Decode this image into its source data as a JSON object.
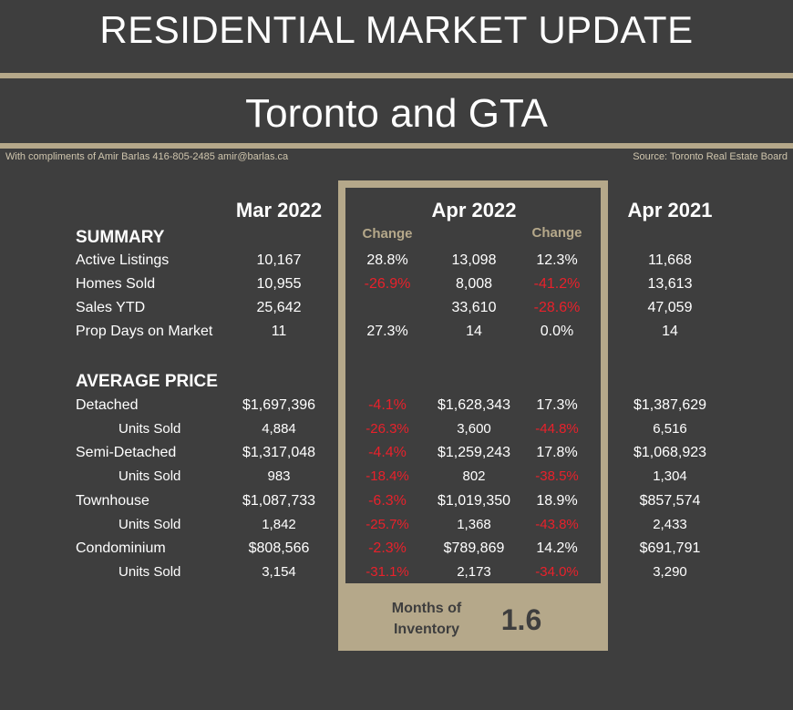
{
  "header": {
    "title": "RESIDENTIAL MARKET UPDATE",
    "subtitle": "Toronto and GTA",
    "credit": "With compliments of Amir Barlas 416-805-2485 amir@barlas.ca",
    "source": "Source: Toronto Real Estate Board"
  },
  "columns": {
    "mar2022": "Mar 2022",
    "apr2022": "Apr 2022",
    "apr2021": "Apr 2021",
    "change": "Change"
  },
  "sections": {
    "summary": "SUMMARY",
    "average_price": "AVERAGE PRICE"
  },
  "colors": {
    "background": "#3e3e3e",
    "accent": "#b5a88a",
    "negative": "#e8212b"
  },
  "summary_rows": [
    {
      "label": "Active Listings",
      "mar2022": "10,167",
      "change_mar": "28.8%",
      "apr2022": "13,098",
      "change_yoy": "12.3%",
      "apr2021": "11,668",
      "neg_mar": false,
      "neg_yoy": false
    },
    {
      "label": "Homes Sold",
      "mar2022": "10,955",
      "change_mar": "-26.9%",
      "apr2022": "8,008",
      "change_yoy": "-41.2%",
      "apr2021": "13,613",
      "neg_mar": true,
      "neg_yoy": true
    },
    {
      "label": "Sales YTD",
      "mar2022": "25,642",
      "change_mar": "",
      "apr2022": "33,610",
      "change_yoy": "-28.6%",
      "apr2021": "47,059",
      "neg_mar": false,
      "neg_yoy": true
    },
    {
      "label": "Prop Days on Market",
      "mar2022": "11",
      "change_mar": "27.3%",
      "apr2022": "14",
      "change_yoy": "0.0%",
      "apr2021": "14",
      "neg_mar": false,
      "neg_yoy": false
    }
  ],
  "price_rows": [
    {
      "label": "Detached",
      "mar2022": "$1,697,396",
      "change_mar": "-4.1%",
      "apr2022": "$1,628,343",
      "change_yoy": "17.3%",
      "apr2021": "$1,387,629",
      "neg_mar": true,
      "neg_yoy": false
    },
    {
      "label": "Units Sold",
      "mar2022": "4,884",
      "change_mar": "-26.3%",
      "apr2022": "3,600",
      "change_yoy": "-44.8%",
      "apr2021": "6,516",
      "neg_mar": true,
      "neg_yoy": true
    },
    {
      "label": "Semi-Detached",
      "mar2022": "$1,317,048",
      "change_mar": "-4.4%",
      "apr2022": "$1,259,243",
      "change_yoy": "17.8%",
      "apr2021": "$1,068,923",
      "neg_mar": true,
      "neg_yoy": false
    },
    {
      "label": "Units Sold",
      "mar2022": "983",
      "change_mar": "-18.4%",
      "apr2022": "802",
      "change_yoy": "-38.5%",
      "apr2021": "1,304",
      "neg_mar": true,
      "neg_yoy": true
    },
    {
      "label": "Townhouse",
      "mar2022": "$1,087,733",
      "change_mar": "-6.3%",
      "apr2022": "$1,019,350",
      "change_yoy": "18.9%",
      "apr2021": "$857,574",
      "neg_mar": true,
      "neg_yoy": false
    },
    {
      "label": "Units Sold",
      "mar2022": "1,842",
      "change_mar": "-25.7%",
      "apr2022": "1,368",
      "change_yoy": "-43.8%",
      "apr2021": "2,433",
      "neg_mar": true,
      "neg_yoy": true
    },
    {
      "label": "Condominium",
      "mar2022": "$808,566",
      "change_mar": "-2.3%",
      "apr2022": "$789,869",
      "change_yoy": "14.2%",
      "apr2021": "$691,791",
      "neg_mar": true,
      "neg_yoy": false
    },
    {
      "label": "Units Sold",
      "mar2022": "3,154",
      "change_mar": "-31.1%",
      "apr2022": "2,173",
      "change_yoy": "-34.0%",
      "apr2021": "3,290",
      "neg_mar": true,
      "neg_yoy": true
    }
  ],
  "inventory": {
    "label_line1": "Months of",
    "label_line2": "Inventory",
    "value": "1.6"
  }
}
